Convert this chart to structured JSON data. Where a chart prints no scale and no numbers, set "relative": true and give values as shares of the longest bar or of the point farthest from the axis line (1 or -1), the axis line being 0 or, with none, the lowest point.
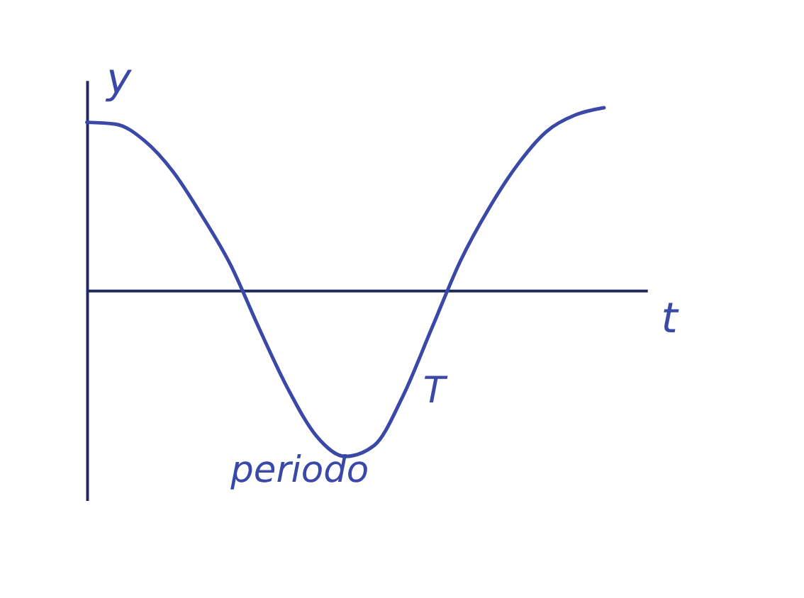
{
  "chart_data": {
    "type": "line",
    "relative": true,
    "xlabel": "t",
    "ylabel": "y",
    "categories": [
      null,
      null,
      null,
      null,
      null,
      null,
      null,
      null,
      null,
      null,
      null,
      null,
      null,
      null,
      null,
      null,
      null,
      null,
      null
    ],
    "series": [
      {
        "color": "#3a48a8",
        "values": [
          0.92,
          0.91,
          0.82,
          0.65,
          0.41,
          0.14,
          -0.21,
          -0.54,
          -0.8,
          -0.91,
          -0.85,
          -0.58,
          -0.21,
          0.16,
          0.45,
          0.69,
          0.87,
          0.96,
          1
        ]
      }
    ],
    "annotations": [
      "T",
      "periodo"
    ],
    "tick_labels": false,
    "grid": false,
    "marker": "none",
    "line_style": "solid"
  }
}
